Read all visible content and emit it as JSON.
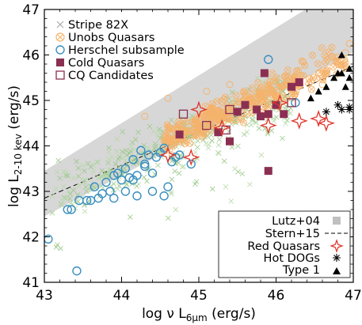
{
  "chart_data": {
    "type": "scatter",
    "xlabel": "log ν L",
    "xlabel_sub": "6μm",
    "xlabel_unit": " (erg/s)",
    "ylabel": "log L",
    "ylabel_sub": "2-10 kev",
    "ylabel_unit": " (erg/s)",
    "xlim": [
      43,
      47
    ],
    "ylim": [
      41,
      47
    ],
    "xticks": [
      "43",
      "44",
      "45",
      "46",
      "47"
    ],
    "yticks": [
      "41",
      "42",
      "43",
      "44",
      "45",
      "46",
      "47"
    ],
    "colors": {
      "stripe82x": "#9bc98a",
      "unobs": "#f5b26b",
      "herschel": "#3a8fc0",
      "cold": "#8b2f52",
      "cq_cand": "#8b2f52",
      "red": "#e0342a",
      "band": "#d0d0d0"
    },
    "legend_top": [
      {
        "label": "Stripe 82X",
        "marker": "x",
        "color": "#aaaaaa"
      },
      {
        "label": "Unobs Quasars",
        "marker": "circle-x",
        "color": "#f5b26b"
      },
      {
        "label": "Herschel subsample",
        "marker": "open-circle",
        "color": "#3a8fc0"
      },
      {
        "label": "Cold Quasars",
        "marker": "filled-square",
        "color": "#8b2f52"
      },
      {
        "label": "CQ Candidates",
        "marker": "open-square",
        "color": "#8b2f52"
      }
    ],
    "legend_bottom": [
      {
        "label": "Lutz+04",
        "marker": "gray-square"
      },
      {
        "label": "Stern+15",
        "marker": "dashed-line"
      },
      {
        "label": "Red Quasars",
        "marker": "open-star"
      },
      {
        "label": "Hot DOGs",
        "marker": "asterisk"
      },
      {
        "label": "Type 1",
        "marker": "filled-triangle"
      }
    ],
    "series": [
      {
        "name": "Herschel subsample",
        "marker": "open-circle",
        "x": [
          43.05,
          43.3,
          43.35,
          43.45,
          43.55,
          43.6,
          43.7,
          43.75,
          43.8,
          43.85,
          43.9,
          43.95,
          44.0,
          44.05,
          44.1,
          44.15,
          44.2,
          44.25,
          44.3,
          44.35,
          44.4,
          44.45,
          44.5,
          44.55,
          44.6,
          44.65,
          44.7,
          43.65,
          43.9,
          44.05,
          44.2,
          44.4,
          44.55,
          43.42,
          45.9,
          46.25,
          44.75,
          44.9,
          44.15,
          44.3
        ],
        "y": [
          41.95,
          42.6,
          42.6,
          42.8,
          42.8,
          42.8,
          42.85,
          42.95,
          43.2,
          43.0,
          43.35,
          43.4,
          43.25,
          43.5,
          43.3,
          43.7,
          43.35,
          43.9,
          43.6,
          43.8,
          43.4,
          43.75,
          43.85,
          43.95,
          43.1,
          43.65,
          43.75,
          43.1,
          42.85,
          43.0,
          42.9,
          43.0,
          42.9,
          41.25,
          45.9,
          44.95,
          43.8,
          43.6,
          43.25,
          43.55
        ]
      },
      {
        "name": "Cold Quasars",
        "marker": "filled-square",
        "x": [
          44.75,
          45.25,
          45.4,
          45.5,
          45.6,
          45.75,
          45.85,
          45.9,
          46.0,
          46.1,
          46.2,
          46.3,
          45.9,
          45.8
        ],
        "y": [
          44.25,
          44.3,
          44.1,
          44.75,
          44.9,
          44.8,
          45.6,
          44.7,
          44.9,
          44.7,
          45.3,
          45.4,
          43.45,
          44.65
        ]
      },
      {
        "name": "CQ Candidates",
        "marker": "open-square",
        "x": [
          44.8,
          45.1,
          45.35,
          45.4,
          46.2
        ],
        "y": [
          44.7,
          44.45,
          44.35,
          44.8,
          44.95
        ]
      },
      {
        "name": "Red Quasars",
        "marker": "open-star",
        "x": [
          44.6,
          44.9,
          45.0,
          45.3,
          45.9,
          46.05,
          46.3,
          46.55,
          46.65
        ],
        "y": [
          43.8,
          43.75,
          44.8,
          44.4,
          44.45,
          44.95,
          44.55,
          44.6,
          44.5
        ]
      },
      {
        "name": "Hot DOGs",
        "marker": "asterisk",
        "x": [
          46.65,
          46.8,
          46.85,
          46.95,
          46.95
        ],
        "y": [
          44.75,
          44.9,
          44.8,
          44.85,
          44.8
        ]
      },
      {
        "name": "Type 1",
        "marker": "filled-triangle",
        "x": [
          46.45,
          46.55,
          46.65,
          46.75,
          46.8,
          46.85,
          46.9,
          46.95,
          46.95,
          46.85
        ],
        "y": [
          45.05,
          45.2,
          45.3,
          45.5,
          45.6,
          45.6,
          45.3,
          45.7,
          45.5,
          46.0
        ]
      }
    ]
  }
}
